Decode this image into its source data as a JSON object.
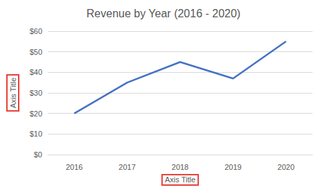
{
  "chart_data": {
    "type": "line",
    "title": "Revenue by Year (2016 - 2020)",
    "x_label": "Axis Title",
    "y_label": "Axis Title",
    "categories": [
      "2016",
      "2017",
      "2018",
      "2019",
      "2020"
    ],
    "values": [
      20,
      35,
      45,
      37,
      55
    ],
    "color": "#4472c4",
    "ylim": [
      0,
      60
    ],
    "yticks": [
      {
        "value": 0,
        "label": "$0"
      },
      {
        "value": 10,
        "label": "$10"
      },
      {
        "value": 20,
        "label": "$20"
      },
      {
        "value": 30,
        "label": "$30"
      },
      {
        "value": 40,
        "label": "$40"
      },
      {
        "value": 50,
        "label": "$50"
      },
      {
        "value": 60,
        "label": "$60"
      }
    ],
    "grid": true
  }
}
